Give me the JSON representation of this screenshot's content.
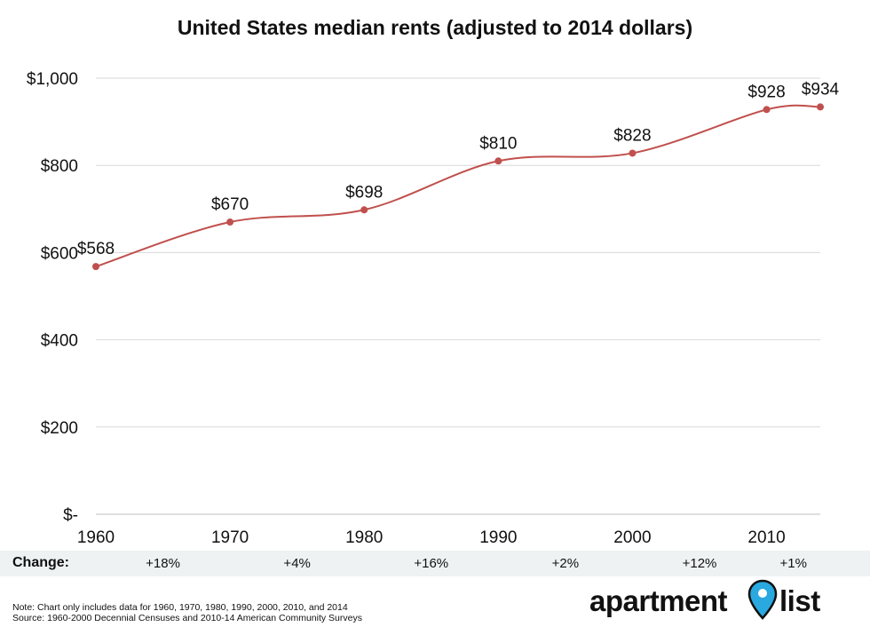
{
  "chart_data": {
    "type": "line",
    "title": "United States median rents (adjusted to 2014 dollars)",
    "x": [
      1960,
      1970,
      1980,
      1990,
      2000,
      2010,
      2014
    ],
    "x_tick_labels": [
      "1960",
      "1970",
      "1980",
      "1990",
      "2000",
      "2010"
    ],
    "series": [
      {
        "values": [
          568,
          670,
          698,
          810,
          828,
          928,
          934
        ],
        "data_labels": [
          "$568",
          "$670",
          "$698",
          "$810",
          "$828",
          "$928",
          "$934"
        ]
      }
    ],
    "y_ticks": [
      0,
      200,
      400,
      600,
      800,
      1000
    ],
    "y_tick_labels": [
      "$-",
      "$200",
      "$400",
      "$600",
      "$800",
      "$1,000"
    ],
    "ylim": [
      0,
      1000
    ],
    "xlim": [
      1960,
      2014
    ],
    "grid": "horizontal",
    "line_color": "#c0504d",
    "change": {
      "label": "Change:",
      "values": [
        "+18%",
        "+4%",
        "+16%",
        "+2%",
        "+12%",
        "+1%"
      ]
    },
    "notes": [
      "Note: Chart only includes data for 1960, 1970, 1980, 1990, 2000, 2010, and 2014",
      "Source: 1960-2000 Decennial Censuses and 2010-14 American Community Surveys"
    ]
  },
  "logo": {
    "word1": "apartment",
    "word2": "list",
    "pin_color": "#29a9e0"
  }
}
